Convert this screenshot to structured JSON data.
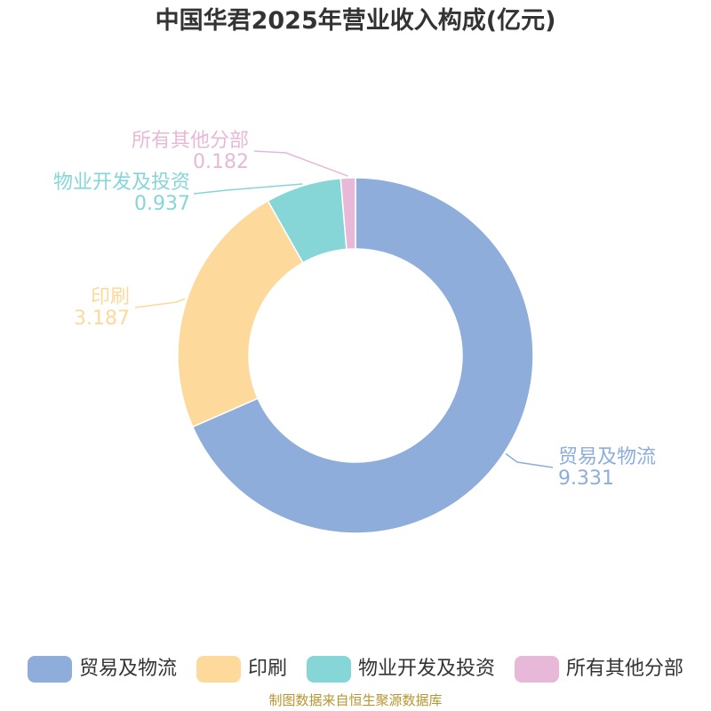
{
  "chart_data": {
    "type": "pie",
    "variant": "donut",
    "title": "中国华君2025年营业收入构成(亿元)",
    "series": [
      {
        "name": "",
        "slices": [
          {
            "label": "贸易及物流",
            "value": 9.331,
            "value_text": "9.331",
            "color": "#8eaddb"
          },
          {
            "label": "印刷",
            "value": 3.187,
            "value_text": "3.187",
            "color": "#fdd99b"
          },
          {
            "label": "物业开发及投资",
            "value": 0.937,
            "value_text": "0.937",
            "color": "#86d6d8"
          },
          {
            "label": "所有其他分部",
            "value": 0.182,
            "value_text": "0.182",
            "color": "#e8b8d8"
          }
        ]
      }
    ],
    "legend_position": "bottom"
  },
  "source_note": "制图数据来自恒生聚源数据库"
}
